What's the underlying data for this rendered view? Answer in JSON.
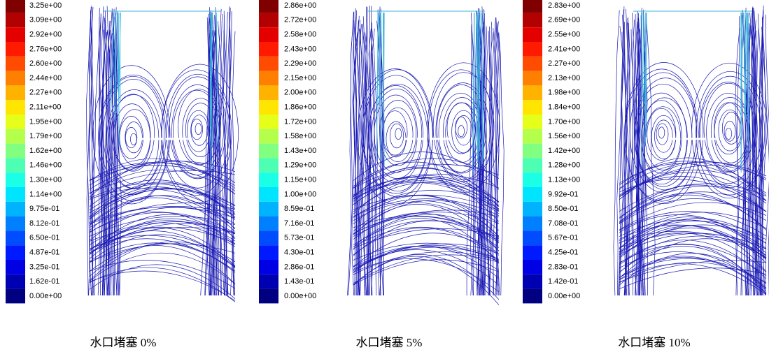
{
  "panels": [
    {
      "colorbar_labels": [
        "3.25e+00",
        "3.09e+00",
        "2.92e+00",
        "2.76e+00",
        "2.60e+00",
        "2.44e+00",
        "2.27e+00",
        "2.11e+00",
        "1.95e+00",
        "1.79e+00",
        "1.62e+00",
        "1.46e+00",
        "1.30e+00",
        "1.14e+00",
        "9.75e-01",
        "8.12e-01",
        "6.50e-01",
        "4.87e-01",
        "3.25e-01",
        "1.62e-01",
        "0.00e+00"
      ],
      "caption": "水口堵塞 0%"
    },
    {
      "colorbar_labels": [
        "2.86e+00",
        "2.72e+00",
        "2.58e+00",
        "2.43e+00",
        "2.29e+00",
        "2.15e+00",
        "2.00e+00",
        "1.86e+00",
        "1.72e+00",
        "1.58e+00",
        "1.43e+00",
        "1.29e+00",
        "1.15e+00",
        "1.00e+00",
        "8.59e-01",
        "7.16e-01",
        "5.73e-01",
        "4.30e-01",
        "2.86e-01",
        "1.43e-01",
        "0.00e+00"
      ],
      "caption": "水口堵塞 5%"
    },
    {
      "colorbar_labels": [
        "2.83e+00",
        "2.69e+00",
        "2.55e+00",
        "2.41e+00",
        "2.27e+00",
        "2.13e+00",
        "1.98e+00",
        "1.84e+00",
        "1.70e+00",
        "1.56e+00",
        "1.42e+00",
        "1.28e+00",
        "1.13e+00",
        "9.92e-01",
        "8.50e-01",
        "7.08e-01",
        "5.67e-01",
        "4.25e-01",
        "2.83e-01",
        "1.42e-01",
        "0.00e+00"
      ],
      "caption": "水口堵塞 10%"
    }
  ]
}
